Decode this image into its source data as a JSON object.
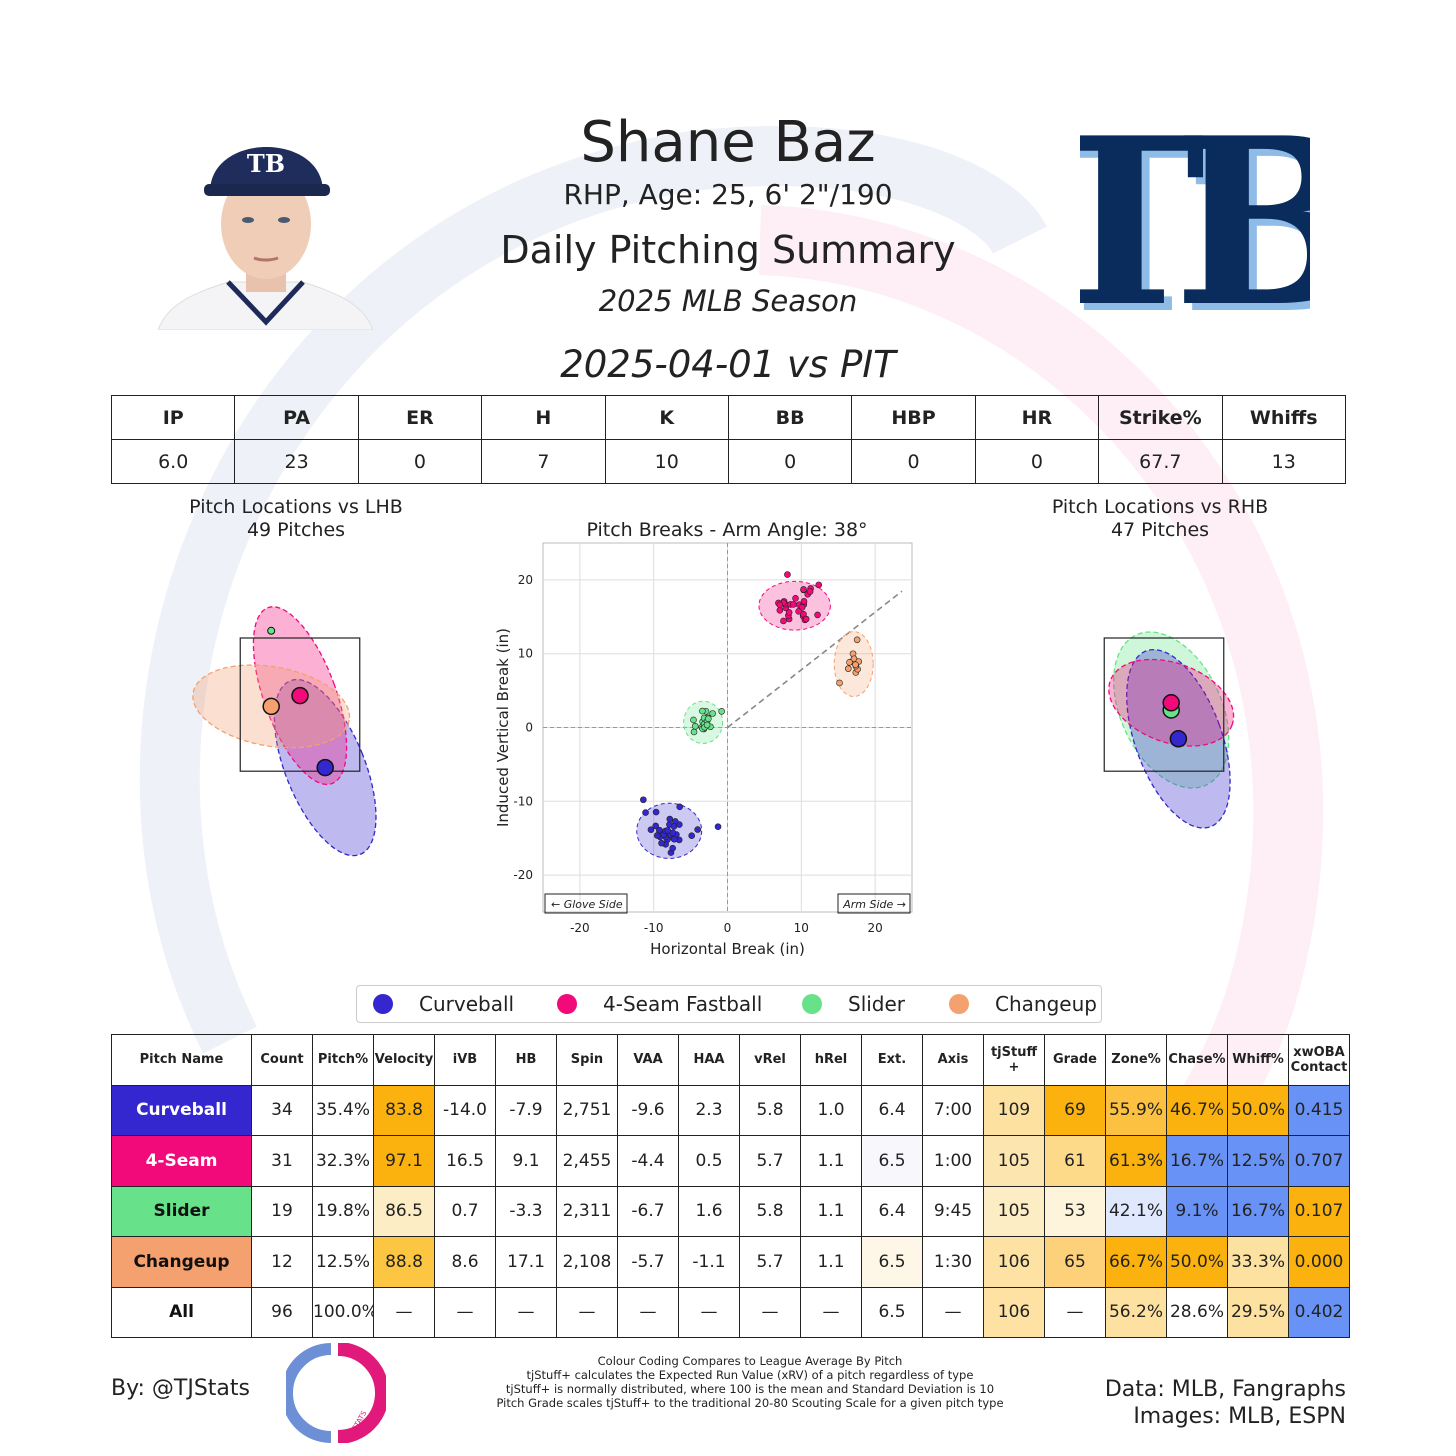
{
  "header": {
    "name": "Shane Baz",
    "info": "RHP, Age: 25, 6' 2\"/190",
    "title": "Daily Pitching Summary",
    "season": "2025 MLB Season",
    "game": "2025-04-01 vs PIT",
    "team_logo": "TB"
  },
  "summary": {
    "headers": [
      "IP",
      "PA",
      "ER",
      "H",
      "K",
      "BB",
      "HBP",
      "HR",
      "Strike%",
      "Whiffs"
    ],
    "values": [
      "6.0",
      "23",
      "0",
      "7",
      "10",
      "0",
      "0",
      "0",
      "67.7",
      "13"
    ]
  },
  "pitch_types": {
    "curveball": {
      "label": "Curveball",
      "color": "#3427cf"
    },
    "fastball": {
      "label": "4-Seam Fastball",
      "color": "#f2097a"
    },
    "slider": {
      "label": "Slider",
      "color": "#67e28a"
    },
    "changeup": {
      "label": "Changeup",
      "color": "#f4a06f"
    }
  },
  "chart_data": [
    {
      "type": "scatter",
      "title": "Pitch Locations vs LHB",
      "subtitle": "49 Pitches",
      "points": [
        {
          "pitch": "curveball",
          "x": 0.35,
          "y": 1.7,
          "spread": [
            0.55,
            1.3
          ],
          "tilt": -22
        },
        {
          "pitch": "fastball",
          "x": 0.0,
          "y": 2.7,
          "spread": [
            0.5,
            1.3
          ],
          "tilt": -20
        },
        {
          "pitch": "changeup",
          "x": -0.4,
          "y": 2.55,
          "spread": [
            1.1,
            0.55
          ],
          "tilt": 10
        }
      ],
      "single": [
        {
          "pitch": "slider",
          "x": -0.4,
          "y": 3.6
        }
      ]
    },
    {
      "type": "scatter",
      "title": "Pitch Breaks - Arm Angle: 38°",
      "xlabel": "Horizontal Break (in)",
      "ylabel": "Induced Vertical Break (in)",
      "xlim": [
        -25,
        25
      ],
      "ylim": [
        -25,
        25
      ],
      "xticks": [
        -20,
        -10,
        0,
        10,
        20
      ],
      "yticks": [
        -20,
        -10,
        0,
        10,
        20
      ],
      "grid": true,
      "annotations": [
        "← Glove Side",
        "Arm Side →"
      ],
      "series": [
        {
          "pitch": "curveball",
          "cx": -7.9,
          "cy": -14.0,
          "n": 34,
          "sx": 2.0,
          "sy": 1.7
        },
        {
          "pitch": "fastball",
          "cx": 9.1,
          "cy": 16.5,
          "n": 31,
          "sx": 2.2,
          "sy": 1.5
        },
        {
          "pitch": "slider",
          "cx": -3.3,
          "cy": 0.7,
          "n": 19,
          "sx": 1.2,
          "sy": 1.3
        },
        {
          "pitch": "changeup",
          "cx": 17.1,
          "cy": 8.6,
          "n": 12,
          "sx": 1.2,
          "sy": 2.0
        }
      ]
    },
    {
      "type": "scatter",
      "title": "Pitch Locations vs RHB",
      "subtitle": "47 Pitches",
      "points": [
        {
          "pitch": "slider",
          "x": 0.1,
          "y": 2.5,
          "spread": [
            0.7,
            1.15
          ],
          "tilt": -25
        },
        {
          "pitch": "curveball",
          "x": 0.2,
          "y": 2.1,
          "spread": [
            0.6,
            1.3
          ],
          "tilt": -20
        },
        {
          "pitch": "fastball",
          "x": 0.1,
          "y": 2.6,
          "spread": [
            0.9,
            0.55
          ],
          "tilt": 20
        }
      ],
      "single": []
    }
  ],
  "legend": [
    "Curveball",
    "4-Seam Fastball",
    "Slider",
    "Changeup"
  ],
  "pitch_table": {
    "headers": [
      "Pitch Name",
      "Count",
      "Pitch%",
      "Velocity",
      "iVB",
      "HB",
      "Spin",
      "VAA",
      "HAA",
      "vRel",
      "hRel",
      "Ext.",
      "Axis",
      "tjStuff +",
      "Grade",
      "Zone%",
      "Chase%",
      "Whiff%",
      "xwOBA Contact"
    ],
    "rows": [
      {
        "cells": [
          "Curveball",
          "34",
          "35.4%",
          "83.8",
          "-14.0",
          "-7.9",
          "2,751",
          "-9.6",
          "2.3",
          "5.8",
          "1.0",
          "6.4",
          "7:00",
          "109",
          "69",
          "55.9%",
          "46.7%",
          "50.0%",
          "0.415"
        ],
        "name_bg": "#3427cf",
        "name_fg": "#ffffff",
        "bg": {
          "3": "#fbb20e",
          "13": "#fde1a0",
          "14": "#fbb20e",
          "15": "#fcc140",
          "16": "#fbb20e",
          "17": "#fbb20e",
          "18": "#6892f6"
        }
      },
      {
        "cells": [
          "4-Seam",
          "31",
          "32.3%",
          "97.1",
          "16.5",
          "9.1",
          "2,455",
          "-4.4",
          "0.5",
          "5.7",
          "1.1",
          "6.5",
          "1:00",
          "105",
          "61",
          "61.3%",
          "16.7%",
          "12.5%",
          "0.707"
        ],
        "name_bg": "#f2097a",
        "name_fg": "#ffffff",
        "bg": {
          "3": "#fbb20e",
          "11": "#f7f7fc",
          "13": "#fde5b0",
          "14": "#fdd98a",
          "15": "#fbb20e",
          "16": "#6892f6",
          "17": "#6892f6",
          "18": "#6892f6"
        }
      },
      {
        "cells": [
          "Slider",
          "19",
          "19.8%",
          "86.5",
          "0.7",
          "-3.3",
          "2,311",
          "-6.7",
          "1.6",
          "5.8",
          "1.1",
          "6.4",
          "9:45",
          "105",
          "53",
          "42.1%",
          "9.1%",
          "16.7%",
          "0.107"
        ],
        "name_bg": "#67e28a",
        "name_fg": "#111111",
        "bg": {
          "3": "#fdedc4",
          "13": "#fdedc4",
          "14": "#fef4dc",
          "15": "#dfe8fd",
          "16": "#6892f6",
          "17": "#6892f6",
          "18": "#fbb20e"
        }
      },
      {
        "cells": [
          "Changeup",
          "12",
          "12.5%",
          "88.8",
          "8.6",
          "17.1",
          "2,108",
          "-5.7",
          "-1.1",
          "5.7",
          "1.1",
          "6.5",
          "1:30",
          "106",
          "65",
          "66.7%",
          "50.0%",
          "33.3%",
          "0.000"
        ],
        "name_bg": "#f4a06f",
        "name_fg": "#111111",
        "bg": {
          "3": "#fcc642",
          "11": "#fef6e6",
          "13": "#fde2a4",
          "14": "#fdd07a",
          "15": "#fbb20e",
          "16": "#fbb20e",
          "17": "#fde1a0",
          "18": "#fbb20e"
        }
      },
      {
        "cells": [
          "All",
          "96",
          "100.0%",
          "—",
          "—",
          "—",
          "—",
          "—",
          "—",
          "—",
          "—",
          "6.5",
          "—",
          "106",
          "—",
          "56.2%",
          "28.6%",
          "29.5%",
          "0.402"
        ],
        "name_bg": "#ffffff",
        "name_fg": "#111111",
        "bg": {
          "13": "#fde2a4",
          "15": "#fde1a0",
          "17": "#fde1a0",
          "18": "#6892f6"
        }
      }
    ]
  },
  "footer": {
    "by": "By: @TJStats",
    "notes": [
      "Colour Coding Compares to League Average By Pitch",
      "tjStuff+ calculates the Expected Run Value (xRV) of a pitch regardless of type",
      "tjStuff+ is normally distributed, where 100 is the mean and Standard Deviation is 10",
      "Pitch Grade scales tjStuff+ to the traditional 20-80 Scouting Scale for a given pitch type"
    ],
    "data_credit": "Data: MLB, Fangraphs",
    "image_credit": "Images: MLB, ESPN",
    "logo_text": "STATS"
  }
}
